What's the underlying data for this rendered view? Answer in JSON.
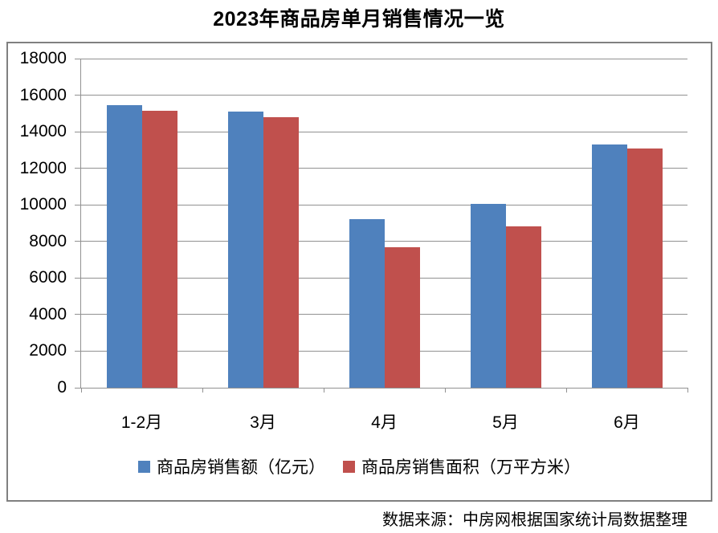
{
  "title": "2023年商品房单月销售情况一览",
  "source_note": "数据来源：中房网根据国家统计局数据整理",
  "colors": {
    "series1": "#4F81BD",
    "series2": "#C0504D",
    "gridline": "#919191",
    "frame_border": "#808080",
    "text": "#000000",
    "background": "#FFFFFF"
  },
  "chart_data": {
    "type": "bar",
    "title": "2023年商品房单月销售情况一览",
    "categories": [
      "1-2月",
      "3月",
      "4月",
      "5月",
      "6月"
    ],
    "series": [
      {
        "name": "商品房销售额（亿元）",
        "color": "#4F81BD",
        "values": [
          15449,
          15096,
          9205,
          10037,
          13305
        ]
      },
      {
        "name": "商品房销售面积（万平方米）",
        "color": "#C0504D",
        "values": [
          15133,
          14813,
          7690,
          8804,
          13075
        ]
      }
    ],
    "xlabel": "",
    "ylabel": "",
    "ylim": [
      0,
      18000
    ],
    "yticks": [
      0,
      2000,
      4000,
      6000,
      8000,
      10000,
      12000,
      14000,
      16000,
      18000
    ],
    "grid": true,
    "legend_position": "bottom"
  }
}
